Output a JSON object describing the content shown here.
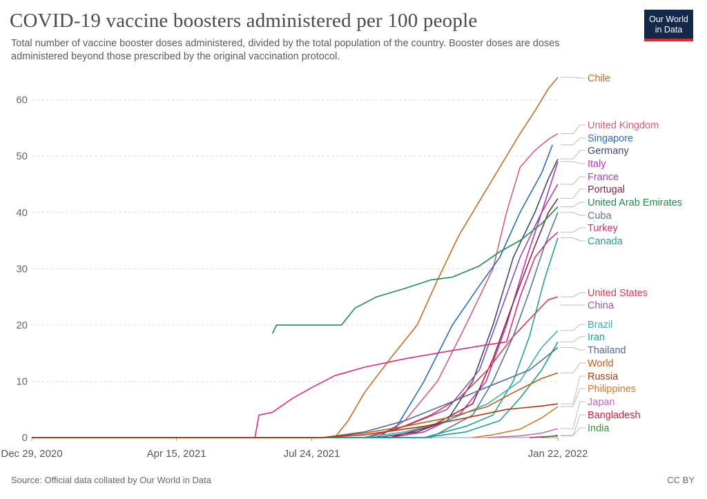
{
  "header": {
    "title": "COVID-19 vaccine boosters administered per 100 people",
    "subtitle": "Total number of vaccine booster doses administered, divided by the total population of the country. Booster doses are doses administered beyond those prescribed by the original vaccination protocol.",
    "logo_line1": "Our World",
    "logo_line2": "in Data"
  },
  "footer": {
    "source": "Source: Official data collated by Our World in Data",
    "license": "CC BY"
  },
  "chart_data": {
    "type": "line",
    "title": "COVID-19 vaccine boosters administered per 100 people",
    "xlabel": "",
    "ylabel": "",
    "y_ticks": [
      0,
      10,
      20,
      30,
      40,
      50,
      60
    ],
    "x_ticks": [
      "2020-12-29",
      "2021-04-15",
      "2021-07-24",
      "2022-01-22"
    ],
    "x_tick_labels": [
      "Dec 29, 2020",
      "Apr 15, 2021",
      "Jul 24, 2021",
      "Jan 22, 2022"
    ],
    "xlim": [
      "2020-12-29",
      "2022-01-22"
    ],
    "ylim": [
      0,
      64
    ],
    "grid": true,
    "legend": "right (labels at line ends)",
    "series": [
      {
        "name": "Chile",
        "color": "#c46a21",
        "points": [
          [
            "2020-12-29",
            0
          ],
          [
            "2021-08-10",
            0
          ],
          [
            "2021-08-20",
            3
          ],
          [
            "2021-09-01",
            8
          ],
          [
            "2021-09-20",
            14
          ],
          [
            "2021-10-10",
            20
          ],
          [
            "2021-10-25",
            28
          ],
          [
            "2021-11-10",
            36
          ],
          [
            "2021-11-25",
            42
          ],
          [
            "2021-12-10",
            48
          ],
          [
            "2021-12-25",
            54
          ],
          [
            "2022-01-05",
            58
          ],
          [
            "2022-01-15",
            62
          ],
          [
            "2022-01-22",
            64
          ]
        ]
      },
      {
        "name": "United Kingdom",
        "color": "#d45e7a",
        "points": [
          [
            "2020-12-29",
            0
          ],
          [
            "2021-09-10",
            0
          ],
          [
            "2021-10-01",
            3
          ],
          [
            "2021-10-25",
            10
          ],
          [
            "2021-11-15",
            20
          ],
          [
            "2021-12-05",
            30
          ],
          [
            "2021-12-15",
            40
          ],
          [
            "2021-12-25",
            48
          ],
          [
            "2022-01-05",
            51
          ],
          [
            "2022-01-15",
            53
          ],
          [
            "2022-01-22",
            54
          ]
        ]
      },
      {
        "name": "Singapore",
        "color": "#286bbb",
        "points": [
          [
            "2020-12-29",
            0
          ],
          [
            "2021-09-10",
            0
          ],
          [
            "2021-09-25",
            2
          ],
          [
            "2021-10-15",
            10
          ],
          [
            "2021-11-05",
            20
          ],
          [
            "2021-11-25",
            27
          ],
          [
            "2021-12-10",
            32
          ],
          [
            "2021-12-25",
            40
          ],
          [
            "2022-01-10",
            47
          ],
          [
            "2022-01-18",
            52
          ]
        ]
      },
      {
        "name": "Germany",
        "color": "#3b4a6b",
        "points": [
          [
            "2020-12-29",
            0
          ],
          [
            "2021-09-10",
            0
          ],
          [
            "2021-10-10",
            1
          ],
          [
            "2021-11-01",
            3
          ],
          [
            "2021-11-20",
            10
          ],
          [
            "2021-12-05",
            20
          ],
          [
            "2021-12-20",
            32
          ],
          [
            "2022-01-05",
            40
          ],
          [
            "2022-01-15",
            46
          ],
          [
            "2022-01-22",
            49.5
          ]
        ]
      },
      {
        "name": "Italy",
        "color": "#c12fa7",
        "points": [
          [
            "2020-12-29",
            0
          ],
          [
            "2021-09-20",
            0
          ],
          [
            "2021-10-15",
            1
          ],
          [
            "2021-11-10",
            4
          ],
          [
            "2021-11-30",
            10
          ],
          [
            "2021-12-15",
            20
          ],
          [
            "2021-12-30",
            32
          ],
          [
            "2022-01-10",
            40
          ],
          [
            "2022-01-22",
            49
          ]
        ]
      },
      {
        "name": "France",
        "color": "#8e4bb3",
        "points": [
          [
            "2020-12-29",
            0
          ],
          [
            "2021-09-01",
            0
          ],
          [
            "2021-10-01",
            2
          ],
          [
            "2021-11-01",
            5
          ],
          [
            "2021-11-25",
            12
          ],
          [
            "2021-12-10",
            22
          ],
          [
            "2021-12-25",
            32
          ],
          [
            "2022-01-10",
            40
          ],
          [
            "2022-01-22",
            45
          ]
        ]
      },
      {
        "name": "Portugal",
        "color": "#8b2442",
        "points": [
          [
            "2020-12-29",
            0
          ],
          [
            "2021-09-20",
            0
          ],
          [
            "2021-10-20",
            2
          ],
          [
            "2021-11-20",
            6
          ],
          [
            "2021-12-05",
            14
          ],
          [
            "2021-12-20",
            24
          ],
          [
            "2022-01-05",
            34
          ],
          [
            "2022-01-15",
            40
          ],
          [
            "2022-01-22",
            42.5
          ]
        ]
      },
      {
        "name": "United Arab Emirates",
        "color": "#1f8a4c",
        "points": [
          [
            "2021-06-25",
            18.5
          ],
          [
            "2021-06-28",
            20
          ],
          [
            "2021-08-15",
            20
          ],
          [
            "2021-08-25",
            23
          ],
          [
            "2021-09-10",
            25
          ],
          [
            "2021-10-01",
            26.5
          ],
          [
            "2021-10-20",
            28
          ],
          [
            "2021-11-05",
            28.5
          ],
          [
            "2021-11-25",
            30.5
          ],
          [
            "2021-12-10",
            33
          ],
          [
            "2021-12-25",
            35
          ],
          [
            "2022-01-10",
            38
          ],
          [
            "2022-01-22",
            41
          ]
        ]
      },
      {
        "name": "Cuba",
        "color": "#577590",
        "points": [
          [
            "2020-12-29",
            0
          ],
          [
            "2021-10-20",
            0
          ],
          [
            "2021-11-20",
            4
          ],
          [
            "2021-12-05",
            10
          ],
          [
            "2021-12-20",
            18
          ],
          [
            "2022-01-01",
            26
          ],
          [
            "2022-01-12",
            34
          ],
          [
            "2022-01-22",
            40
          ]
        ]
      },
      {
        "name": "Turkey",
        "color": "#e0267e",
        "points": [
          [
            "2020-12-29",
            0
          ],
          [
            "2021-06-12",
            0
          ],
          [
            "2021-06-15",
            4
          ],
          [
            "2021-06-25",
            4.5
          ],
          [
            "2021-07-10",
            7
          ],
          [
            "2021-07-25",
            9
          ],
          [
            "2021-08-10",
            11
          ],
          [
            "2021-09-01",
            12.5
          ],
          [
            "2021-10-01",
            14
          ],
          [
            "2021-11-01",
            15.3
          ],
          [
            "2021-12-01",
            16.5
          ],
          [
            "2021-12-15",
            17
          ],
          [
            "2021-12-25",
            25
          ],
          [
            "2022-01-05",
            32
          ],
          [
            "2022-01-15",
            35
          ],
          [
            "2022-01-22",
            36.5
          ]
        ]
      },
      {
        "name": "Canada",
        "color": "#21a096",
        "points": [
          [
            "2020-12-29",
            0
          ],
          [
            "2021-10-15",
            0
          ],
          [
            "2021-11-15",
            2
          ],
          [
            "2021-12-05",
            4
          ],
          [
            "2021-12-20",
            10
          ],
          [
            "2022-01-01",
            18
          ],
          [
            "2022-01-12",
            28
          ],
          [
            "2022-01-22",
            35.5
          ]
        ]
      },
      {
        "name": "United States",
        "color": "#d73c50",
        "points": [
          [
            "2020-12-29",
            0
          ],
          [
            "2021-09-01",
            0
          ],
          [
            "2021-09-25",
            1.5
          ],
          [
            "2021-10-20",
            4
          ],
          [
            "2021-11-10",
            7
          ],
          [
            "2021-12-01",
            12
          ],
          [
            "2021-12-20",
            18
          ],
          [
            "2022-01-05",
            22
          ],
          [
            "2022-01-15",
            24.5
          ],
          [
            "2022-01-22",
            25
          ]
        ]
      },
      {
        "name": "China",
        "color": "#a2559c",
        "points": []
      },
      {
        "name": "Brazil",
        "color": "#38aaba",
        "points": [
          [
            "2020-12-29",
            0
          ],
          [
            "2021-09-01",
            0
          ],
          [
            "2021-10-01",
            1
          ],
          [
            "2021-11-01",
            3
          ],
          [
            "2021-12-01",
            6
          ],
          [
            "2021-12-25",
            10
          ],
          [
            "2022-01-10",
            16
          ],
          [
            "2022-01-22",
            19
          ]
        ]
      },
      {
        "name": "Iran",
        "color": "#18a091",
        "points": [
          [
            "2020-12-29",
            0
          ],
          [
            "2021-10-15",
            0
          ],
          [
            "2021-11-15",
            1
          ],
          [
            "2021-12-10",
            3
          ],
          [
            "2021-12-25",
            7
          ],
          [
            "2022-01-10",
            12
          ],
          [
            "2022-01-22",
            17
          ]
        ]
      },
      {
        "name": "Thailand",
        "color": "#4c6a9c",
        "points": [
          [
            "2020-12-29",
            0
          ],
          [
            "2021-08-01",
            0
          ],
          [
            "2021-09-01",
            1
          ],
          [
            "2021-10-01",
            3
          ],
          [
            "2021-11-01",
            6
          ],
          [
            "2021-12-01",
            9
          ],
          [
            "2022-01-01",
            12
          ],
          [
            "2022-01-22",
            16
          ]
        ]
      },
      {
        "name": "World",
        "color": "#be5915",
        "points": [
          [
            "2020-12-29",
            0
          ],
          [
            "2021-08-01",
            0
          ],
          [
            "2021-09-01",
            0.8
          ],
          [
            "2021-10-01",
            2
          ],
          [
            "2021-11-01",
            3.5
          ],
          [
            "2021-12-01",
            5.5
          ],
          [
            "2021-12-20",
            8
          ],
          [
            "2022-01-10",
            10.5
          ],
          [
            "2022-01-22",
            11.5
          ]
        ]
      },
      {
        "name": "Russia",
        "color": "#b13507",
        "points": [
          [
            "2020-12-29",
            0
          ],
          [
            "2021-08-01",
            0
          ],
          [
            "2021-09-01",
            0.5
          ],
          [
            "2021-10-15",
            2
          ],
          [
            "2021-11-15",
            3.5
          ],
          [
            "2021-12-15",
            5
          ],
          [
            "2022-01-10",
            5.6
          ],
          [
            "2022-01-22",
            6
          ]
        ]
      },
      {
        "name": "Philippines",
        "color": "#d07a27",
        "points": [
          [
            "2021-11-20",
            0
          ],
          [
            "2021-12-05",
            0.5
          ],
          [
            "2021-12-25",
            1.5
          ],
          [
            "2022-01-10",
            3.5
          ],
          [
            "2022-01-22",
            5.5
          ]
        ]
      },
      {
        "name": "Japan",
        "color": "#c467b7",
        "points": [
          [
            "2021-12-01",
            0
          ],
          [
            "2021-12-25",
            0.3
          ],
          [
            "2022-01-10",
            0.8
          ],
          [
            "2022-01-22",
            1.6
          ]
        ]
      },
      {
        "name": "Bangladesh",
        "color": "#cf1f3d",
        "points": [
          [
            "2022-01-01",
            0
          ],
          [
            "2022-01-22",
            0.3
          ]
        ]
      },
      {
        "name": "India",
        "color": "#3f8f3a",
        "points": [
          [
            "2022-01-10",
            0
          ],
          [
            "2022-01-22",
            0.4
          ]
        ]
      }
    ]
  }
}
